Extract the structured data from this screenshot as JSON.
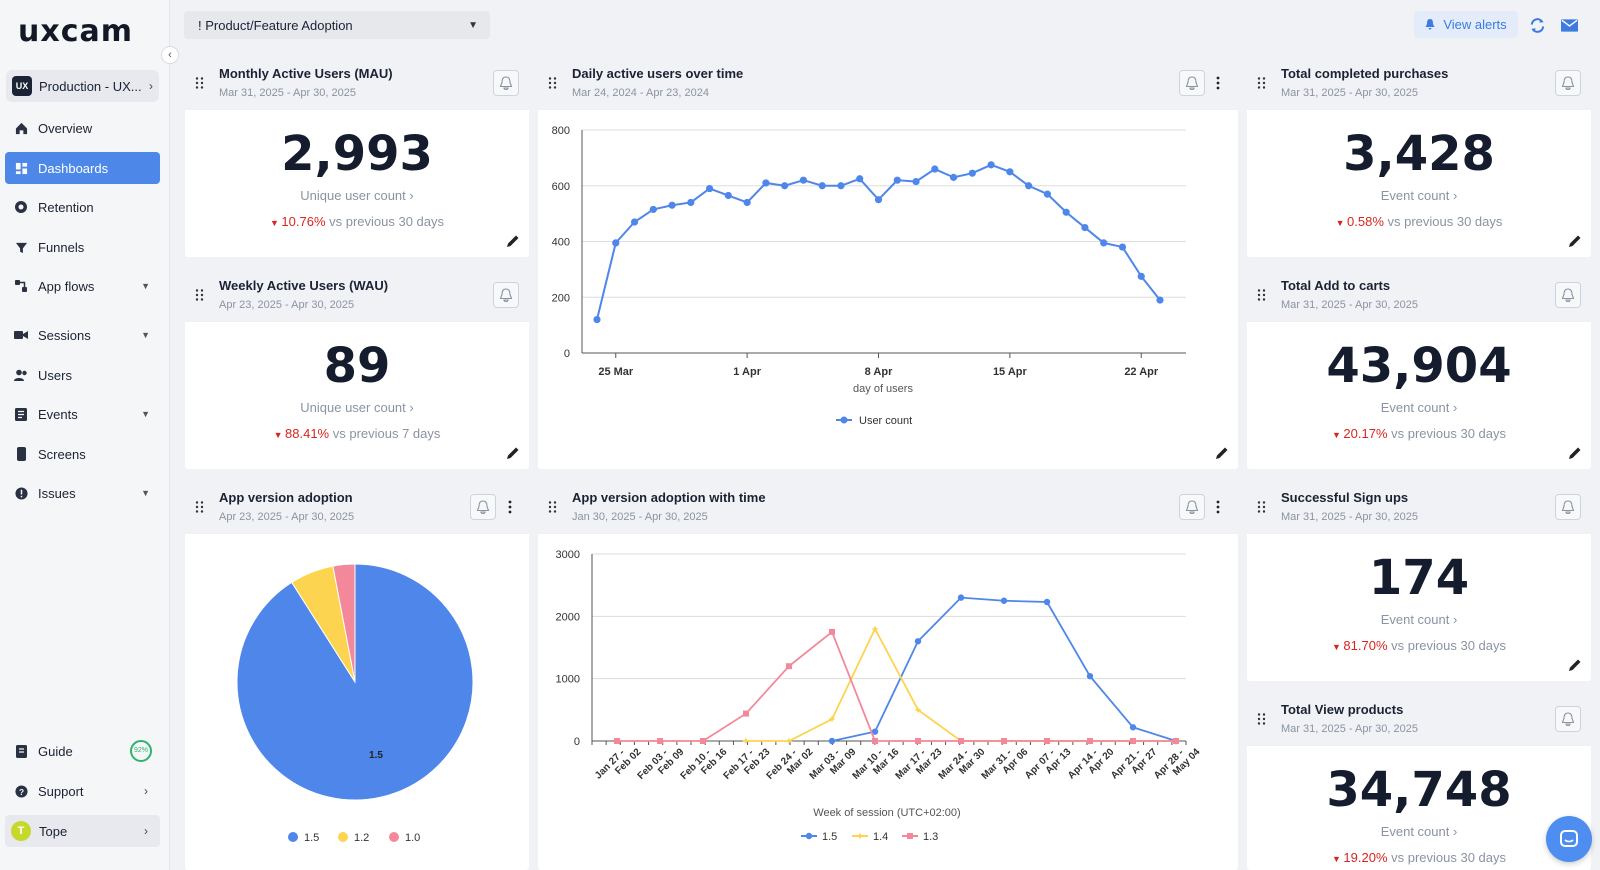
{
  "app": {
    "logo": "uxcam",
    "project": "Production - UX...",
    "project_badge": "UX"
  },
  "nav": [
    {
      "label": "Overview",
      "icon": "home-icon"
    },
    {
      "label": "Dashboards",
      "icon": "dashboard-icon",
      "active": true
    },
    {
      "label": "Retention",
      "icon": "retention-icon"
    },
    {
      "label": "Funnels",
      "icon": "funnel-icon"
    },
    {
      "label": "App flows",
      "icon": "app-flows-icon",
      "expandable": true
    },
    {
      "label": "Sessions",
      "icon": "sessions-icon",
      "expandable": true
    },
    {
      "label": "Users",
      "icon": "users-icon"
    },
    {
      "label": "Events",
      "icon": "events-icon",
      "expandable": true
    },
    {
      "label": "Screens",
      "icon": "screens-icon"
    },
    {
      "label": "Issues",
      "icon": "issues-icon",
      "expandable": true
    }
  ],
  "footer_nav": {
    "guide": {
      "label": "Guide",
      "progress": "92%"
    },
    "support": {
      "label": "Support"
    },
    "user": {
      "label": "Tope",
      "initial": "T"
    }
  },
  "topbar": {
    "dashboard_prefix": "!",
    "dashboard_select": "! Product/Feature Adoption",
    "view_alerts": "View alerts"
  },
  "cards": {
    "mau": {
      "title": "Monthly Active Users (MAU)",
      "date": "Mar 31, 2025 - Apr 30, 2025",
      "value": "2,993",
      "label": "Unique user count ›",
      "delta": "10.76%",
      "delta_text": " vs previous 30 days"
    },
    "wau": {
      "title": "Weekly Active Users (WAU)",
      "date": "Apr 23, 2025 - Apr 30, 2025",
      "value": "89",
      "label": "Unique user count ›",
      "delta": "88.41%",
      "delta_text": " vs previous 7 days"
    },
    "purchases": {
      "title": "Total completed purchases",
      "date": "Mar 31, 2025 - Apr 30, 2025",
      "value": "3,428",
      "label": "Event count ›",
      "delta": "0.58%",
      "delta_text": " vs previous 30 days"
    },
    "carts": {
      "title": "Total Add to carts",
      "date": "Mar 31, 2025 - Apr 30, 2025",
      "value": "43,904",
      "label": "Event count ›",
      "delta": "20.17%",
      "delta_text": " vs previous 30 days"
    },
    "signups": {
      "title": "Successful Sign ups",
      "date": "Mar 31, 2025 - Apr 30, 2025",
      "value": "174",
      "label": "Event count ›",
      "delta": "81.70%",
      "delta_text": " vs previous 30 days"
    },
    "views": {
      "title": "Total View products",
      "date": "Mar 31, 2025 - Apr 30, 2025",
      "value": "34,748",
      "label": "Event count ›",
      "delta": "19.20%",
      "delta_text": " vs previous 30 days"
    },
    "dau": {
      "title": "Daily active users over time",
      "date": "Mar 24, 2024 - Apr 23, 2024"
    },
    "adoption": {
      "title": "App version adoption",
      "date": "Apr 23, 2025 - Apr 30, 2025"
    },
    "adoption_time": {
      "title": "App version adoption with time",
      "date": "Jan 30, 2025 - Apr 30, 2025"
    }
  },
  "colors": {
    "blue": "#4e86ea",
    "yellow": "#fdd44f",
    "pink": "#f4889b",
    "accent": "#4d88e9",
    "negative": "#d9241f"
  },
  "chart_data": [
    {
      "id": "dau",
      "type": "line",
      "title": "Daily active users over time",
      "xlabel": "day of users",
      "ylabel": "",
      "ylim": [
        0,
        800
      ],
      "yticks": [
        0,
        200,
        400,
        600,
        800
      ],
      "xticks": [
        {
          "label": "25 Mar",
          "index": 1
        },
        {
          "label": "1 Apr",
          "index": 8
        },
        {
          "label": "8 Apr",
          "index": 15
        },
        {
          "label": "15 Apr",
          "index": 22
        },
        {
          "label": "22 Apr",
          "index": 29
        }
      ],
      "series": [
        {
          "name": "User count",
          "values": [
            120,
            395,
            470,
            515,
            530,
            540,
            590,
            565,
            540,
            610,
            600,
            620,
            600,
            600,
            625,
            550,
            620,
            615,
            660,
            630,
            645,
            675,
            650,
            600,
            570,
            505,
            450,
            395,
            380,
            275,
            190
          ]
        }
      ],
      "legend": [
        "User count"
      ]
    },
    {
      "id": "adoption",
      "type": "pie",
      "title": "App version adoption",
      "slices": [
        {
          "label": "1.5",
          "value": 91
        },
        {
          "label": "1.2",
          "value": 6
        },
        {
          "label": "1.0",
          "value": 3
        }
      ],
      "legend": [
        "1.5",
        "1.2",
        "1.0"
      ]
    },
    {
      "id": "adoption_time",
      "type": "line",
      "title": "App version adoption with time",
      "xlabel": "Week of session (UTC+02:00)",
      "ylim": [
        0,
        3000
      ],
      "yticks": [
        0,
        1000,
        2000,
        3000
      ],
      "categories": [
        "Jan 27 - Feb 02",
        "Feb 03 - Feb 09",
        "Feb 10 - Feb 16",
        "Feb 17 - Feb 23",
        "Feb 24 - Mar 02",
        "Mar 03 - Mar 09",
        "Mar 10 - Mar 16",
        "Mar 17 - Mar 23",
        "Mar 24 - Mar 30",
        "Mar 31 - Apr 06",
        "Apr 07 - Apr 13",
        "Apr 14 - Apr 20",
        "Apr 21 - Apr 27",
        "Apr 28 - May 04"
      ],
      "series": [
        {
          "name": "1.5",
          "values": [
            null,
            null,
            null,
            null,
            null,
            0,
            150,
            1600,
            2300,
            2250,
            2230,
            1040,
            220,
            0
          ]
        },
        {
          "name": "1.4",
          "values": [
            null,
            null,
            null,
            0,
            0,
            350,
            1800,
            500,
            0,
            0,
            0,
            0,
            0,
            0
          ]
        },
        {
          "name": "1.3",
          "values": [
            0,
            0,
            0,
            440,
            1200,
            1750,
            0,
            0,
            0,
            0,
            0,
            0,
            0,
            0
          ]
        }
      ],
      "legend": [
        "1.5",
        "1.4",
        "1.3"
      ]
    }
  ]
}
